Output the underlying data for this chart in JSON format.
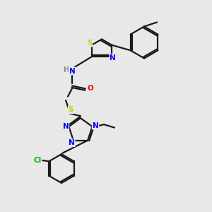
{
  "background_color": "#e8e8e8",
  "bond_color": "#1a1a1a",
  "bond_width": 1.6,
  "atom_colors": {
    "N": "#0000ff",
    "S": "#cccc00",
    "O": "#ff0000",
    "Cl": "#00bb00",
    "C": "#1a1a1a",
    "H": "#888888"
  },
  "figsize": [
    3.0,
    3.0
  ],
  "dpi": 100
}
